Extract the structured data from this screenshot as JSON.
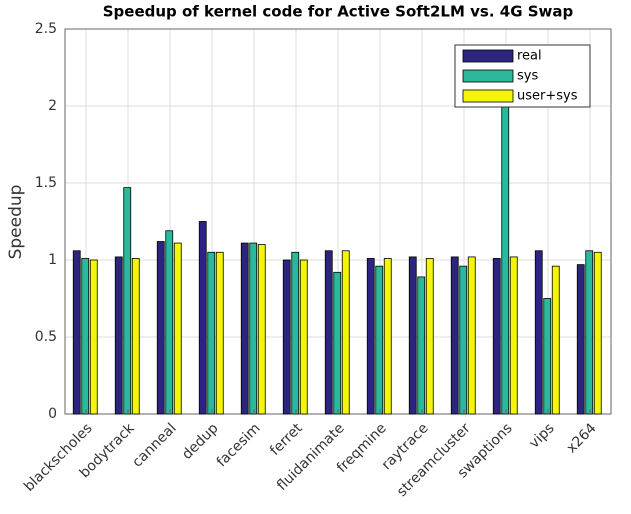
{
  "chart_data": {
    "type": "bar",
    "title": "Speedup of kernel code for Active Soft2LM vs. 4G Swap",
    "y_label": "Speedup",
    "categories": [
      "blackscholes",
      "bodytrack",
      "canneal",
      "dedup",
      "facesim",
      "ferret",
      "fluidanimate",
      "freqmine",
      "raytrace",
      "streamcluster",
      "swaptions",
      "vips",
      "x264"
    ],
    "series": [
      {
        "name": "real",
        "color": "#2c2580",
        "values": [
          1.06,
          1.02,
          1.12,
          1.25,
          1.11,
          1.0,
          1.06,
          1.01,
          1.02,
          1.02,
          1.01,
          1.06,
          0.97
        ]
      },
      {
        "name": "sys",
        "color": "#2db79b",
        "values": [
          1.01,
          1.47,
          1.19,
          1.05,
          1.11,
          1.05,
          0.92,
          0.96,
          0.89,
          0.96,
          2.1,
          0.75,
          1.06
        ]
      },
      {
        "name": "user+sys",
        "color": "#f5f50a",
        "values": [
          1.0,
          1.01,
          1.11,
          1.05,
          1.1,
          1.0,
          1.06,
          1.01,
          1.01,
          1.02,
          1.02,
          0.96,
          1.05
        ]
      }
    ],
    "ylim": [
      0,
      2.5
    ],
    "yticks": [
      0,
      0.5,
      1,
      1.5,
      2,
      2.5
    ],
    "grid": true,
    "legend": "upper right"
  }
}
